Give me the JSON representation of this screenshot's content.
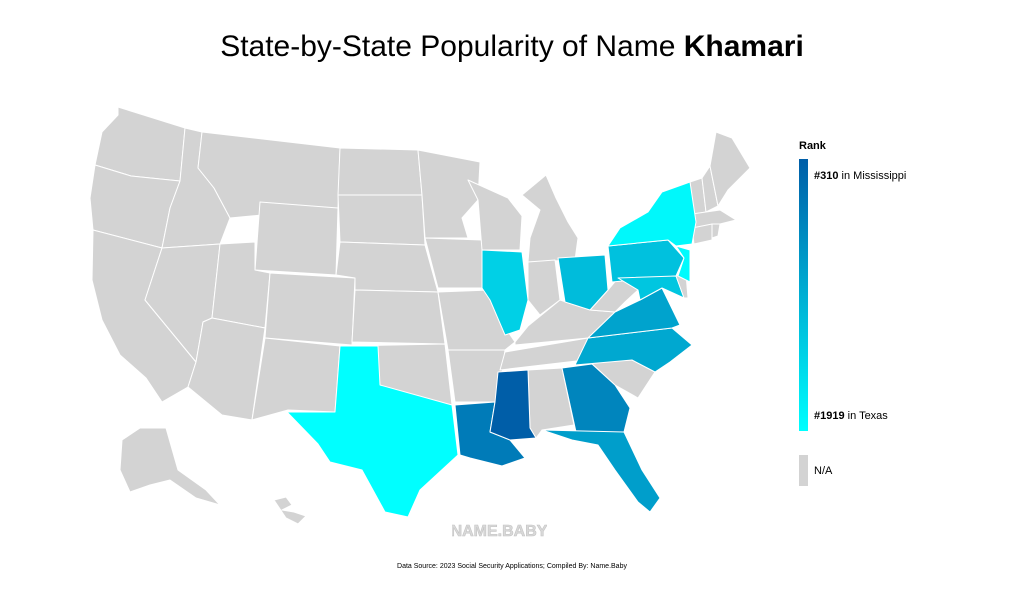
{
  "title": {
    "prefix": "State-by-State Popularity of Name",
    "name": "Khamari"
  },
  "legend": {
    "title": "Rank",
    "top": {
      "rank": "#310",
      "suffix": " in Mississippi"
    },
    "bottom": {
      "rank": "#1919",
      "suffix": " in Texas"
    },
    "na_label": "N/A",
    "gradient": [
      "#005ea8",
      "#00ffff"
    ],
    "na_color": "#d3d3d3"
  },
  "watermark": "NAME.BABY",
  "source": "Data Source: 2023 Social Security Applications; Compiled By: Name.Baby",
  "map_data": {
    "type": "choropleth",
    "metric": "Rank",
    "ranked_states": [
      {
        "state": "Mississippi",
        "rank": 310
      },
      {
        "state": "Louisiana",
        "rank": 600
      },
      {
        "state": "Georgia",
        "rank": 700
      },
      {
        "state": "Florida",
        "rank": 950
      },
      {
        "state": "Virginia",
        "rank": 1000
      },
      {
        "state": "North Carolina",
        "rank": 1050
      },
      {
        "state": "Ohio",
        "rank": 1250
      },
      {
        "state": "Pennsylvania",
        "rank": 1300
      },
      {
        "state": "Maryland",
        "rank": 1350
      },
      {
        "state": "Illinois",
        "rank": 1450
      },
      {
        "state": "New York",
        "rank": 1850
      },
      {
        "state": "New Jersey",
        "rank": 1880
      },
      {
        "state": "Texas",
        "rank": 1919
      }
    ]
  }
}
